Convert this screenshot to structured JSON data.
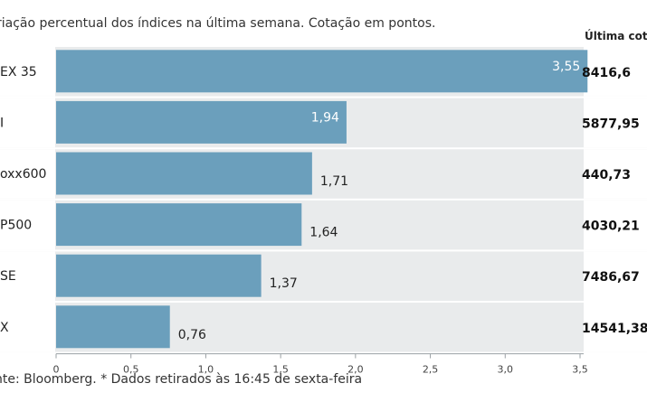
{
  "subtitle": "riação percentual dos índices na última semana. Cotação em pontos.",
  "column_header": "Última cotaç",
  "source_note": "nte: Bloomberg.  * Dados retirados às 16:45 de sexta-feira",
  "colors": {
    "bar": "#6b9fbc",
    "row_bg": "#ffffff",
    "plot_bg": "#e9ebec",
    "separator": "#bfc3c6"
  },
  "chart_data": {
    "type": "bar",
    "orientation": "horizontal",
    "categories": [
      "EX 35",
      "I",
      "oxx600",
      "P500",
      "SE",
      "X"
    ],
    "values": [
      3.55,
      1.94,
      1.71,
      1.64,
      1.37,
      0.76
    ],
    "value_labels": [
      "3,55",
      "1,94",
      "1,71",
      "1,64",
      "1,37",
      "0,76"
    ],
    "last_quote": [
      "8416,6",
      "5877,95",
      "440,73",
      "4030,21",
      "7486,67",
      "14541,38"
    ],
    "xlim": [
      0,
      3.5
    ],
    "xticks": [
      0,
      0.5,
      1,
      1.5,
      2,
      2.5,
      3,
      3.5
    ],
    "xtick_labels": [
      "0",
      "0,5",
      "1,0",
      "1,5",
      "2,0",
      "2,5",
      "3,0",
      "3,5"
    ]
  }
}
